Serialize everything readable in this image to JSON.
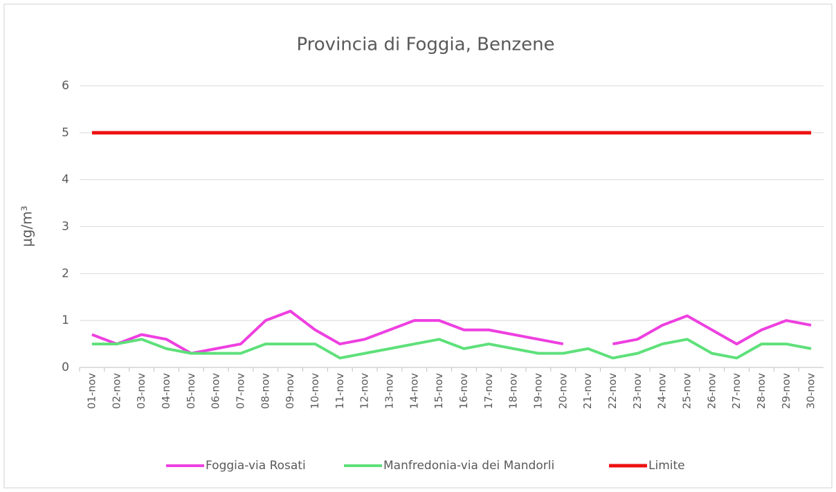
{
  "chart_data": {
    "type": "line",
    "title": "Provincia di Foggia, Benzene",
    "y_label": "μg/m³",
    "categories": [
      "01-nov",
      "02-nov",
      "03-nov",
      "04-nov",
      "05-nov",
      "06-nov",
      "07-nov",
      "08-nov",
      "09-nov",
      "10-nov",
      "11-nov",
      "12-nov",
      "13-nov",
      "14-nov",
      "15-nov",
      "16-nov",
      "17-nov",
      "18-nov",
      "19-nov",
      "20-nov",
      "21-nov",
      "22-nov",
      "23-nov",
      "24-nov",
      "25-nov",
      "26-nov",
      "27-nov",
      "28-nov",
      "29-nov",
      "30-nov"
    ],
    "series": [
      {
        "name": "Foggia-via Rosati",
        "color": "#ee3fe0",
        "values": [
          0.7,
          0.5,
          0.7,
          0.6,
          0.3,
          0.4,
          0.5,
          1.0,
          1.2,
          0.8,
          0.5,
          0.6,
          0.8,
          1.0,
          1.0,
          0.8,
          0.8,
          0.7,
          0.6,
          0.5,
          null,
          0.5,
          0.6,
          0.9,
          1.1,
          0.8,
          0.5,
          0.8,
          1.0,
          0.9
        ]
      },
      {
        "name": "Manfredonia-via dei Mandorli",
        "color": "#5ee07a",
        "values": [
          0.5,
          0.5,
          0.6,
          0.4,
          0.3,
          0.3,
          0.3,
          0.5,
          0.5,
          0.5,
          0.2,
          0.3,
          0.4,
          0.5,
          0.6,
          0.4,
          0.5,
          0.4,
          0.3,
          0.3,
          0.4,
          0.2,
          0.3,
          0.5,
          0.6,
          0.3,
          0.2,
          0.5,
          0.5,
          0.4
        ]
      },
      {
        "name": "Limite",
        "color": "#ee1111",
        "values": [
          5,
          5,
          5,
          5,
          5,
          5,
          5,
          5,
          5,
          5,
          5,
          5,
          5,
          5,
          5,
          5,
          5,
          5,
          5,
          5,
          5,
          5,
          5,
          5,
          5,
          5,
          5,
          5,
          5,
          5
        ]
      }
    ],
    "ylim": [
      0,
      6
    ],
    "yticks": [
      0,
      1,
      2,
      3,
      4,
      5,
      6
    ],
    "grid": true,
    "legend": "bottom"
  }
}
